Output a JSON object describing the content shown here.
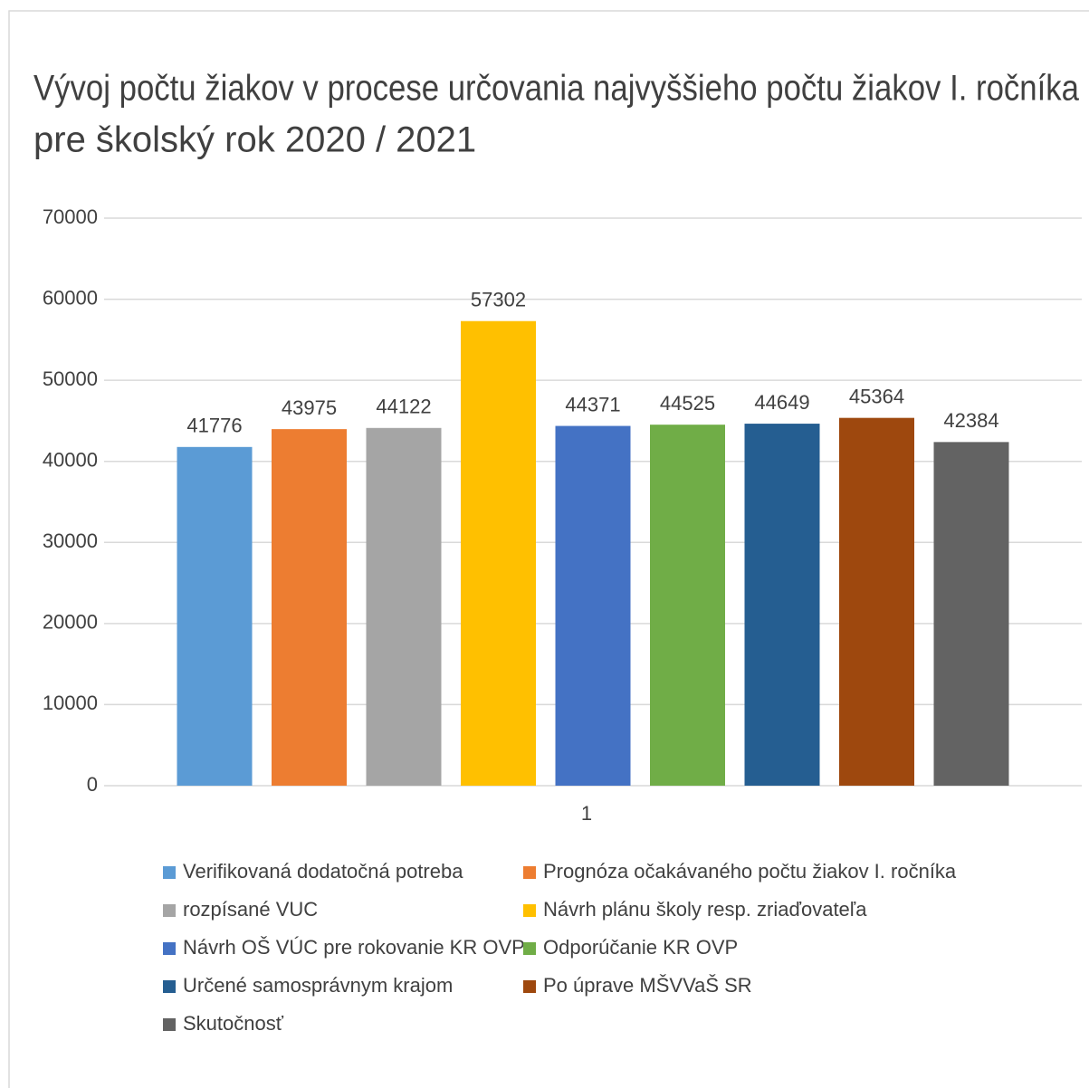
{
  "chart_data": {
    "type": "bar",
    "title": [
      "Vývoj počtu žiakov v procese určovania najvyššieho počtu žiakov I. ročníka",
      "pre školský rok 2020 / 2021"
    ],
    "categories": [
      "1"
    ],
    "series": [
      {
        "name": "Verifikovaná dodatočná potreba",
        "color": "#5b9bd5",
        "values": [
          41776
        ]
      },
      {
        "name": "Prognóza očakávaného počtu žiakov I. ročníka",
        "color": "#ed7d31",
        "values": [
          43975
        ]
      },
      {
        "name": "rozpísané VUC",
        "color": "#a5a5a5",
        "values": [
          44122
        ]
      },
      {
        "name": "Návrh plánu školy resp. zriaďovateľa",
        "color": "#ffc000",
        "values": [
          57302
        ]
      },
      {
        "name": "Návrh OŠ VÚC pre rokovanie KR OVP",
        "color": "#4472c4",
        "values": [
          44371
        ]
      },
      {
        "name": "Odporúčanie KR OVP",
        "color": "#70ad47",
        "values": [
          44525
        ]
      },
      {
        "name": "Určené samosprávnym krajom",
        "color": "#255e91",
        "values": [
          44649
        ]
      },
      {
        "name": "Po úprave MŠVVaŠ SR",
        "color": "#9e480e",
        "values": [
          45364
        ]
      },
      {
        "name": "Skutočnosť",
        "color": "#636363",
        "values": [
          42384
        ]
      }
    ],
    "ylim": [
      0,
      70000
    ],
    "yticks": [
      0,
      10000,
      20000,
      30000,
      40000,
      50000,
      60000,
      70000
    ],
    "grid": true,
    "legend": "bottom"
  }
}
